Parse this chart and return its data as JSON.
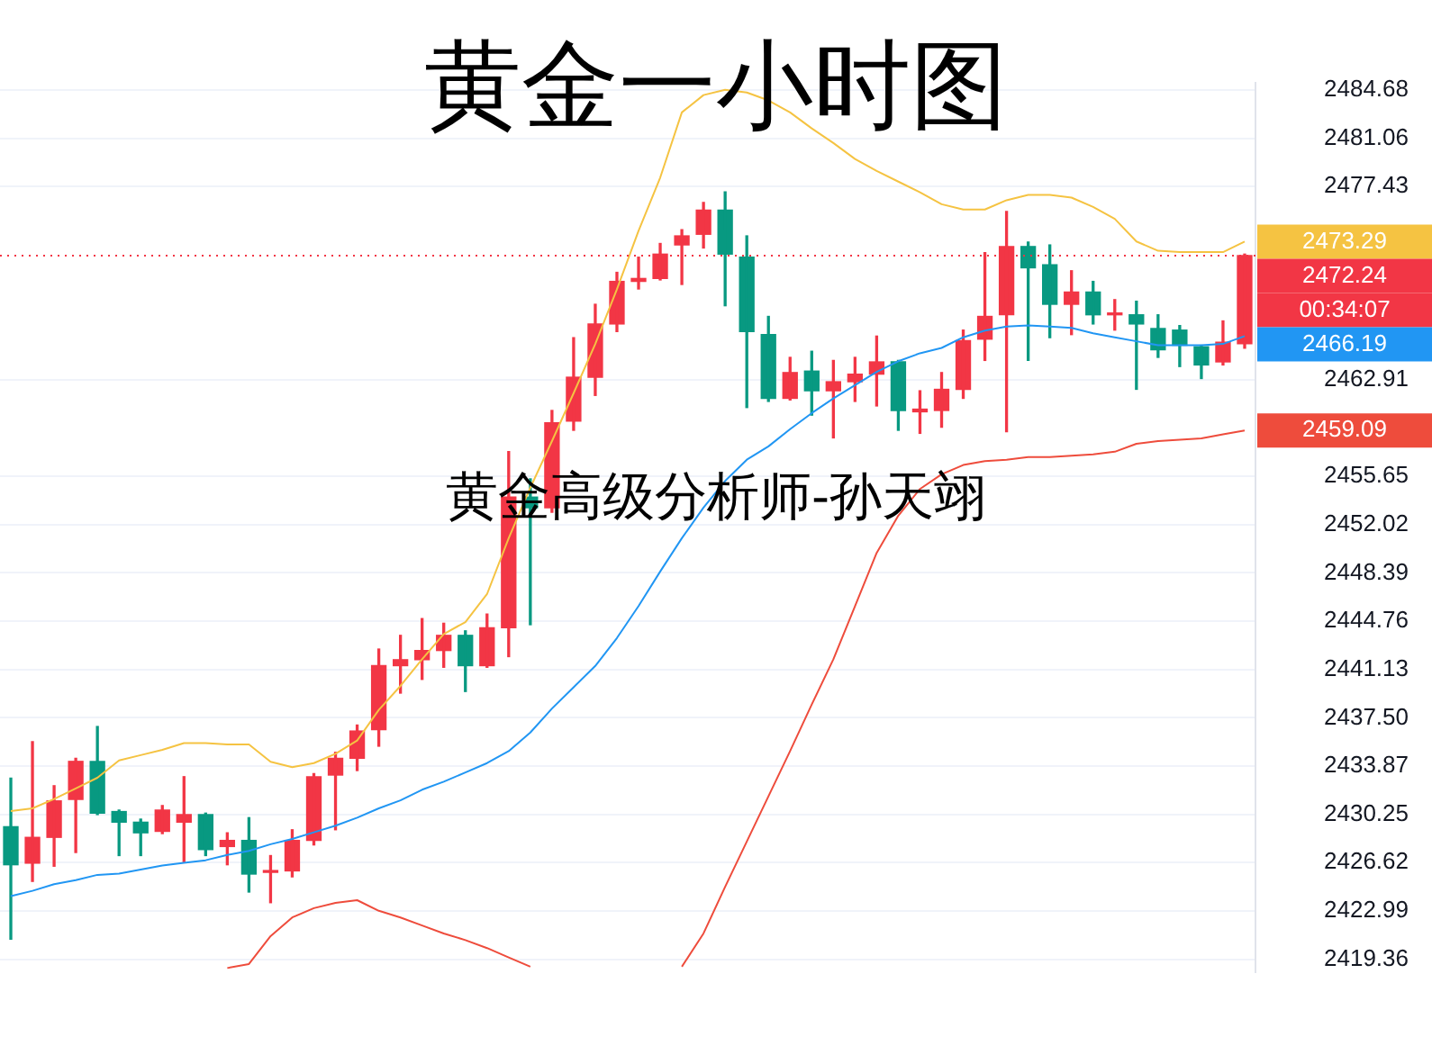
{
  "chart_data": {
    "type": "candlestick",
    "title": "黄金一小时图",
    "subtitle": "黄金高级分析师-孙天翊",
    "categories": [
      null,
      null,
      null,
      null,
      null,
      null,
      null,
      null,
      null,
      null,
      null,
      null,
      null,
      null,
      null,
      null,
      null,
      null,
      null,
      null,
      null,
      null,
      null,
      null,
      null,
      null,
      null,
      null,
      null,
      null,
      null,
      null,
      null,
      null,
      null,
      null,
      null,
      null,
      null,
      null,
      null,
      null,
      null,
      null,
      null,
      null,
      null,
      null,
      null,
      null,
      null,
      null,
      null,
      null,
      null,
      null,
      null,
      null
    ],
    "ohlc": [
      [
        2429.32,
        2432.97,
        2420.87,
        2426.46
      ],
      [
        2426.58,
        2435.71,
        2425.21,
        2428.52
      ],
      [
        2428.52,
        2432.4,
        2426.35,
        2431.26
      ],
      [
        2431.37,
        2434.46,
        2427.38,
        2434.23
      ],
      [
        2434.23,
        2436.85,
        2430.23,
        2430.34
      ],
      [
        2430.46,
        2430.57,
        2427.15,
        2429.66
      ],
      [
        2429.66,
        2429.89,
        2427.15,
        2428.86
      ],
      [
        2428.97,
        2430.91,
        2428.8,
        2430.57
      ],
      [
        2429.66,
        2433.08,
        2426.69,
        2430.23
      ],
      [
        2430.23,
        2430.34,
        2427.15,
        2427.6
      ],
      [
        2427.83,
        2428.86,
        2426.46,
        2428.29
      ],
      [
        2428.29,
        2430.0,
        2424.41,
        2425.76
      ],
      [
        2425.89,
        2427.15,
        2423.61,
        2426.0
      ],
      [
        2426.0,
        2429.09,
        2425.55,
        2428.29
      ],
      [
        2428.29,
        2433.31,
        2427.95,
        2433.08
      ],
      [
        2433.2,
        2434.91,
        2429.09,
        2434.46
      ],
      [
        2434.46,
        2436.96,
        2433.54,
        2436.51
      ],
      [
        2436.62,
        2442.67,
        2435.37,
        2441.42
      ],
      [
        2441.42,
        2443.7,
        2439.36,
        2441.87
      ],
      [
        2441.87,
        2444.96,
        2440.39,
        2442.56
      ],
      [
        2442.56,
        2444.61,
        2441.3,
        2443.7
      ],
      [
        2443.7,
        2444.04,
        2439.48,
        2441.42
      ],
      [
        2441.42,
        2445.3,
        2441.3,
        2444.27
      ],
      [
        2444.27,
        2457.51,
        2442.1,
        2454.09
      ],
      [
        2454.09,
        2455.46,
        2444.5,
        2453.29
      ],
      [
        2453.29,
        2460.6,
        2452.95,
        2459.68
      ],
      [
        2459.8,
        2466.07,
        2459.11,
        2463.1
      ],
      [
        2463.1,
        2468.58,
        2461.73,
        2467.1
      ],
      [
        2467.1,
        2470.98,
        2466.53,
        2470.3
      ],
      [
        2470.3,
        2472.12,
        2469.73,
        2470.52
      ],
      [
        2470.52,
        2473.15,
        2470.41,
        2472.35
      ],
      [
        2473.04,
        2474.18,
        2470.07,
        2473.72
      ],
      [
        2473.84,
        2476.23,
        2472.81,
        2475.66
      ],
      [
        2475.66,
        2477.03,
        2468.47,
        2472.35
      ],
      [
        2472.12,
        2473.72,
        2460.82,
        2466.53
      ],
      [
        2466.3,
        2467.67,
        2461.28,
        2461.51
      ],
      [
        2461.51,
        2464.59,
        2461.39,
        2463.45
      ],
      [
        2463.56,
        2465.05,
        2460.25,
        2462.08
      ],
      [
        2462.08,
        2464.36,
        2458.54,
        2462.76
      ],
      [
        2462.76,
        2464.59,
        2461.28,
        2463.33
      ],
      [
        2463.33,
        2466.19,
        2460.94,
        2464.25
      ],
      [
        2464.25,
        2464.36,
        2459.11,
        2460.6
      ],
      [
        2460.5,
        2462.08,
        2458.88,
        2460.7
      ],
      [
        2460.6,
        2463.45,
        2459.34,
        2462.19
      ],
      [
        2462.19,
        2466.64,
        2461.51,
        2465.84
      ],
      [
        2465.96,
        2472.46,
        2464.36,
        2467.67
      ],
      [
        2467.79,
        2475.55,
        2459.0,
        2472.92
      ],
      [
        2472.92,
        2473.26,
        2464.36,
        2471.32
      ],
      [
        2471.55,
        2473.04,
        2466.07,
        2468.58
      ],
      [
        2468.58,
        2471.1,
        2466.3,
        2469.5
      ],
      [
        2469.5,
        2470.3,
        2467.1,
        2467.79
      ],
      [
        2467.79,
        2468.93,
        2466.64,
        2467.9
      ],
      [
        2467.79,
        2468.81,
        2462.19,
        2467.1
      ],
      [
        2466.76,
        2467.79,
        2464.59,
        2465.16
      ],
      [
        2466.64,
        2466.98,
        2463.9,
        2465.5
      ],
      [
        2465.39,
        2465.5,
        2463.0,
        2464.02
      ],
      [
        2464.25,
        2467.33,
        2464.02,
        2465.73
      ],
      [
        2465.62,
        2472.35,
        2465.28,
        2472.24
      ]
    ],
    "colors": [
      "#089981",
      "#f23645",
      "#f23645",
      "#f23645",
      "#089981",
      "#089981",
      "#089981",
      "#f23645",
      "#f23645",
      "#089981",
      "#f23645",
      "#089981",
      "#f23645",
      "#f23645",
      "#f23645",
      "#f23645",
      "#f23645",
      "#f23645",
      "#f23645",
      "#f23645",
      "#f23645",
      "#089981",
      "#f23645",
      "#f23645",
      "#089981",
      "#f23645",
      "#f23645",
      "#f23645",
      "#f23645",
      "#f23645",
      "#f23645",
      "#f23645",
      "#f23645",
      "#089981",
      "#089981",
      "#089981",
      "#f23645",
      "#089981",
      "#f23645",
      "#f23645",
      "#f23645",
      "#089981",
      "#f23645",
      "#f23645",
      "#f23645",
      "#f23645",
      "#f23645",
      "#089981",
      "#089981",
      "#f23645",
      "#089981",
      "#f23645",
      "#089981",
      "#089981",
      "#089981",
      "#089981",
      "#f23645",
      "#f23645"
    ],
    "series": [
      {
        "type": "line",
        "color": "#f5c342",
        "values": [
          2430.5,
          2430.7,
          2431.4,
          2432.2,
          2433.0,
          2434.3,
          2434.7,
          2435.1,
          2435.6,
          2435.6,
          2435.5,
          2435.5,
          2434.2,
          2433.8,
          2434.1,
          2434.8,
          2435.8,
          2438.1,
          2439.9,
          2441.9,
          2443.8,
          2444.7,
          2446.8,
          2451.0,
          2454.8,
          2458.3,
          2461.9,
          2465.6,
          2469.7,
          2474.1,
          2478.1,
          2483.0,
          2484.3,
          2484.7,
          2484.5,
          2483.9,
          2483.0,
          2481.8,
          2480.7,
          2479.5,
          2478.6,
          2477.8,
          2477.0,
          2476.1,
          2475.7,
          2475.7,
          2476.4,
          2476.8,
          2476.8,
          2476.6,
          2475.9,
          2475.0,
          2473.3,
          2472.6,
          2472.5,
          2472.5,
          2472.5,
          2473.29
        ]
      },
      {
        "type": "line",
        "color": "#2196f3",
        "values": [
          2424.1,
          2424.5,
          2425.0,
          2425.3,
          2425.7,
          2425.8,
          2426.1,
          2426.4,
          2426.6,
          2426.8,
          2427.2,
          2427.5,
          2428.0,
          2428.4,
          2428.9,
          2429.4,
          2430.0,
          2430.7,
          2431.3,
          2432.1,
          2432.7,
          2433.4,
          2434.1,
          2435.0,
          2436.4,
          2438.2,
          2439.8,
          2441.4,
          2443.5,
          2445.9,
          2448.5,
          2451.0,
          2453.3,
          2455.3,
          2456.9,
          2457.9,
          2459.2,
          2460.4,
          2461.5,
          2462.5,
          2463.5,
          2464.3,
          2464.9,
          2465.3,
          2466.1,
          2466.6,
          2466.9,
          2467.0,
          2466.9,
          2466.8,
          2466.4,
          2466.1,
          2465.8,
          2465.5,
          2465.5,
          2465.5,
          2465.6,
          2466.19
        ]
      },
      {
        "type": "line",
        "color": "#ee4c3c",
        "values": [
          null,
          null,
          null,
          null,
          null,
          null,
          null,
          null,
          null,
          null,
          2418.7,
          2419.0,
          2421.1,
          2422.5,
          2423.2,
          2423.6,
          2423.8,
          2423.0,
          2422.5,
          2421.9,
          2421.3,
          2420.8,
          2420.2,
          2419.5,
          2418.8,
          null,
          null,
          null,
          null,
          null,
          null,
          2418.8,
          2421.3,
          2424.8,
          2428.2,
          2431.6,
          2435.0,
          2438.5,
          2441.9,
          2445.9,
          2449.9,
          2452.7,
          2454.7,
          2455.8,
          2456.5,
          2456.8,
          2456.9,
          2457.1,
          2457.1,
          2457.2,
          2457.3,
          2457.5,
          2458.1,
          2458.3,
          2458.4,
          2458.5,
          2458.8,
          2459.09
        ]
      }
    ],
    "ylim": [
      2418.36,
      2485.25
    ],
    "yticks": [
      2484.68,
      2481.06,
      2477.43,
      2462.91,
      2455.65,
      2452.02,
      2448.39,
      2444.76,
      2441.13,
      {
        "value": 2437.5,
        "label": "2437.50"
      },
      2433.87,
      2430.25,
      2426.62,
      2422.99,
      2419.36
    ],
    "ref_lines": [
      {
        "axis": "y",
        "value": 2472.24,
        "label": "2472.24",
        "color": "#f23645",
        "line_style": "dotted"
      }
    ],
    "annotations": [
      "2473.29",
      "2466.19",
      "2459.09",
      "00:34:07"
    ],
    "grid": "y",
    "legend": false,
    "tick_labels": "y"
  }
}
